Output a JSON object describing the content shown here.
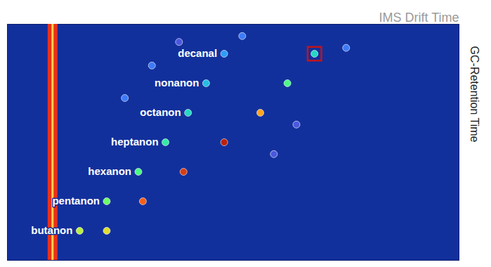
{
  "chart_data": {
    "type": "scatter",
    "x_label": "IMS Drift Time",
    "y_label": "GC-Retention Time",
    "xlim": [
      0,
      10
    ],
    "ylim": [
      0,
      8
    ],
    "xticks": [],
    "yticks": [],
    "tick_labels": false,
    "grid": false,
    "rip_drift_time": 1.0,
    "intensity_range": [
      0,
      1
    ],
    "compounds": [
      {
        "name": "butanon",
        "retention_time": 1.0,
        "monomer_drift_time": 1.6,
        "monomer_intensity": 0.55,
        "dimer_drift_time": 2.2,
        "dimer_intensity": 0.6
      },
      {
        "name": "pentanon",
        "retention_time": 2.0,
        "monomer_drift_time": 2.2,
        "monomer_intensity": 0.45,
        "dimer_drift_time": 3.0,
        "dimer_intensity": 0.8
      },
      {
        "name": "hexanon",
        "retention_time": 3.0,
        "monomer_drift_time": 2.9,
        "monomer_intensity": 0.4,
        "dimer_drift_time": 3.9,
        "dimer_intensity": 0.85
      },
      {
        "name": "heptanon",
        "retention_time": 4.0,
        "monomer_drift_time": 3.5,
        "monomer_intensity": 0.35,
        "dimer_drift_time": 4.8,
        "dimer_intensity": 0.9
      },
      {
        "name": "octanon",
        "retention_time": 5.0,
        "monomer_drift_time": 4.0,
        "monomer_intensity": 0.3,
        "dimer_drift_time": 5.6,
        "dimer_intensity": 0.7
      },
      {
        "name": "nonanon",
        "retention_time": 6.0,
        "monomer_drift_time": 4.4,
        "monomer_intensity": 0.25,
        "dimer_drift_time": 6.2,
        "dimer_intensity": 0.4
      },
      {
        "name": "decanal",
        "retention_time": 7.0,
        "monomer_drift_time": 4.8,
        "monomer_intensity": 0.2,
        "dimer_drift_time": 6.8,
        "dimer_intensity": 0.3
      }
    ],
    "unlabeled_peaks": {
      "drift_time": [
        2.6,
        3.2,
        5.2,
        5.9,
        7.5,
        3.8,
        6.4
      ],
      "retention_time": [
        5.5,
        6.6,
        7.6,
        3.6,
        7.2,
        7.4,
        4.6
      ],
      "intensity": [
        0.15,
        0.15,
        0.15,
        0.1,
        0.15,
        0.1,
        0.1
      ]
    },
    "highlighted_peak": {
      "drift_time": 6.8,
      "retention_time": 7.0
    }
  }
}
